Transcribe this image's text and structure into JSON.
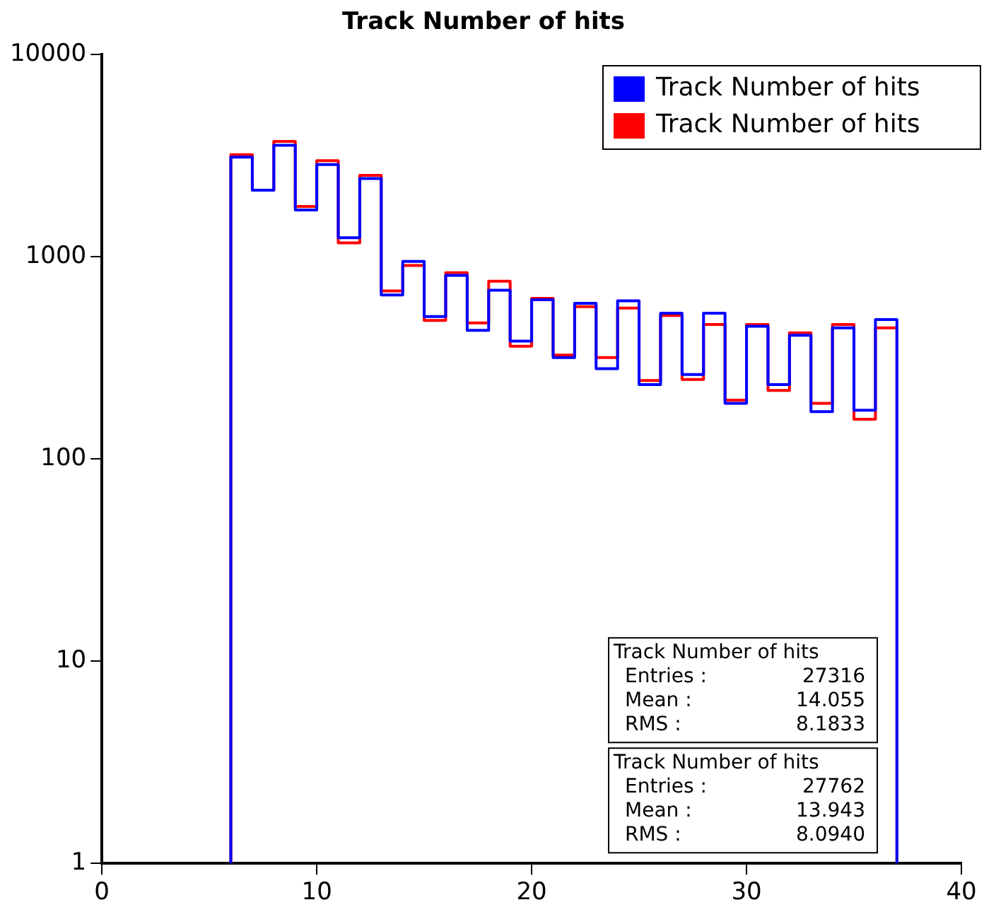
{
  "chart_data": {
    "type": "histogram",
    "title": "Track Number of hits",
    "bins": [
      6,
      7,
      8,
      9,
      10,
      11,
      12,
      13,
      14,
      15,
      16,
      17,
      18,
      19,
      20,
      21,
      22,
      23,
      24,
      25,
      26,
      27,
      28,
      29,
      30,
      31,
      32,
      33,
      34,
      35,
      36,
      37
    ],
    "series": [
      {
        "name": "Track Number of hits",
        "color": "#0000ff",
        "values": [
          3100,
          2130,
          3550,
          1700,
          2850,
          1240,
          2430,
          646,
          946,
          505,
          807,
          432,
          682,
          382,
          611,
          317,
          588,
          279,
          604,
          233,
          525,
          261,
          525,
          188,
          452,
          233,
          408,
          171,
          444,
          174,
          488
        ]
      },
      {
        "name": "Track Number of hits",
        "color": "#ff0000",
        "values": [
          3190,
          2130,
          3710,
          1770,
          2980,
          1170,
          2520,
          676,
          904,
          483,
          832,
          470,
          755,
          360,
          621,
          326,
          565,
          317,
          556,
          244,
          511,
          247,
          461,
          195,
          461,
          218,
          420,
          188,
          461,
          157,
          444
        ]
      }
    ],
    "log": "y",
    "xlim": [
      0,
      40
    ],
    "xticks": [
      0,
      10,
      20,
      30,
      40
    ],
    "ylim": [
      1,
      10000
    ],
    "yticks": [
      1,
      10,
      100,
      1000,
      10000
    ],
    "grid": false,
    "legend": "top right",
    "annotations": [
      "Track Number of hits\nEntries : 27316\nMean : 14.055\nRMS : 8.1833",
      "Track Number of hits\nEntries : 27762\nMean : 13.943\nRMS : 8.0940"
    ]
  }
}
